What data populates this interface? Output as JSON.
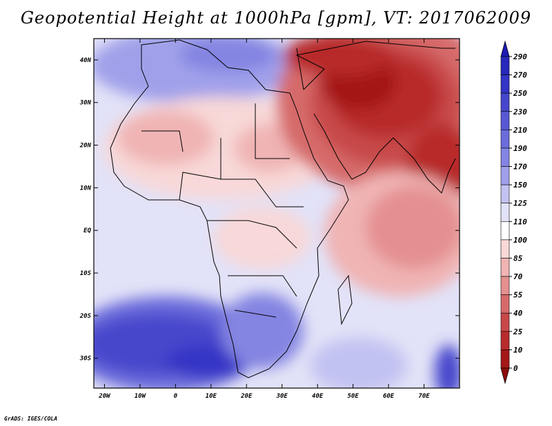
{
  "title": "Geopotential Height at 1000hPa [gpm], VT: 2017062009",
  "credit": "GrADS: IGES/COLA",
  "map": {
    "lon_range": [
      -23,
      80
    ],
    "lat_range": [
      -37,
      45
    ],
    "x_ticks": [
      {
        "value": -20,
        "label": "20W"
      },
      {
        "value": -10,
        "label": "10W"
      },
      {
        "value": 0,
        "label": "0"
      },
      {
        "value": 10,
        "label": "10E"
      },
      {
        "value": 20,
        "label": "20E"
      },
      {
        "value": 30,
        "label": "30E"
      },
      {
        "value": 40,
        "label": "40E"
      },
      {
        "value": 50,
        "label": "50E"
      },
      {
        "value": 60,
        "label": "60E"
      },
      {
        "value": 70,
        "label": "70E"
      }
    ],
    "y_ticks": [
      {
        "value": 40,
        "label": "40N"
      },
      {
        "value": 30,
        "label": "30N"
      },
      {
        "value": 20,
        "label": "20N"
      },
      {
        "value": 10,
        "label": "10N"
      },
      {
        "value": 0,
        "label": "EQ"
      },
      {
        "value": -10,
        "label": "10S"
      },
      {
        "value": -20,
        "label": "20S"
      },
      {
        "value": -30,
        "label": "30S"
      }
    ]
  },
  "colorbar": {
    "levels": [
      "290",
      "270",
      "250",
      "230",
      "210",
      "190",
      "170",
      "150",
      "125",
      "110",
      "100",
      "85",
      "70",
      "55",
      "40",
      "25",
      "10",
      "0"
    ],
    "colors": [
      "#1c1cb4",
      "#2828bc",
      "#3434c6",
      "#4646cc",
      "#5858d4",
      "#6c6cdc",
      "#8484e2",
      "#a0a0ea",
      "#c2c2f2",
      "#e2e2f8",
      "#ffffff",
      "#f8d8d8",
      "#f0b4b4",
      "#e49090",
      "#d66a6a",
      "#c84848",
      "#b82c2c",
      "#a41818",
      "#900c0c"
    ]
  }
}
